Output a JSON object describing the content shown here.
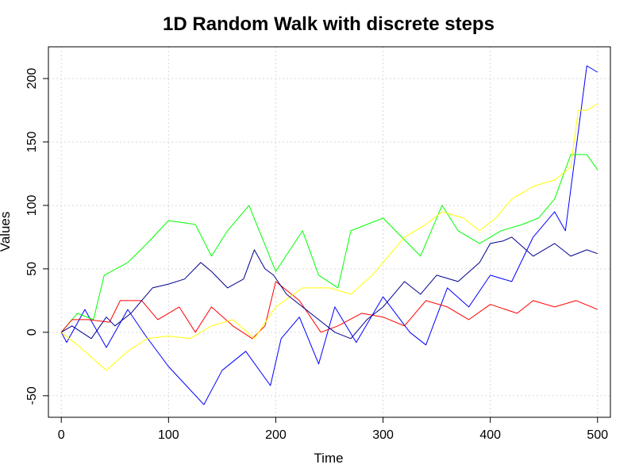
{
  "chart_data": {
    "type": "line",
    "title": "1D Random Walk with discrete steps",
    "xlabel": "Time",
    "ylabel": "Values",
    "xlim": [
      -12,
      512
    ],
    "ylim": [
      -67,
      225
    ],
    "xticks": [
      0,
      100,
      200,
      300,
      400,
      500
    ],
    "yticks": [
      -50,
      0,
      50,
      100,
      150,
      200
    ],
    "grid": true,
    "series": [
      {
        "color": "#0000ff",
        "points": [
          [
            0,
            0
          ],
          [
            5,
            -8
          ],
          [
            22,
            18
          ],
          [
            42,
            -12
          ],
          [
            62,
            18
          ],
          [
            78,
            -2
          ],
          [
            100,
            -27
          ],
          [
            133,
            -57
          ],
          [
            150,
            -30
          ],
          [
            172,
            -15
          ],
          [
            195,
            -42
          ],
          [
            205,
            -5
          ],
          [
            222,
            12
          ],
          [
            240,
            -25
          ],
          [
            255,
            20
          ],
          [
            275,
            -8
          ],
          [
            300,
            28
          ],
          [
            325,
            0
          ],
          [
            340,
            -10
          ],
          [
            360,
            35
          ],
          [
            380,
            20
          ],
          [
            400,
            45
          ],
          [
            420,
            40
          ],
          [
            440,
            75
          ],
          [
            460,
            95
          ],
          [
            470,
            80
          ],
          [
            490,
            210
          ],
          [
            500,
            205
          ]
        ]
      },
      {
        "color": "#00ff00",
        "points": [
          [
            0,
            0
          ],
          [
            15,
            15
          ],
          [
            30,
            10
          ],
          [
            40,
            45
          ],
          [
            62,
            55
          ],
          [
            80,
            70
          ],
          [
            100,
            88
          ],
          [
            125,
            85
          ],
          [
            140,
            60
          ],
          [
            155,
            80
          ],
          [
            175,
            100
          ],
          [
            200,
            48
          ],
          [
            225,
            80
          ],
          [
            240,
            45
          ],
          [
            258,
            35
          ],
          [
            270,
            80
          ],
          [
            300,
            90
          ],
          [
            335,
            60
          ],
          [
            355,
            100
          ],
          [
            370,
            80
          ],
          [
            390,
            70
          ],
          [
            410,
            80
          ],
          [
            430,
            85
          ],
          [
            445,
            90
          ],
          [
            460,
            105
          ],
          [
            475,
            140
          ],
          [
            490,
            140
          ],
          [
            500,
            128
          ]
        ]
      },
      {
        "color": "#ff0000",
        "points": [
          [
            0,
            0
          ],
          [
            10,
            10
          ],
          [
            25,
            10
          ],
          [
            45,
            8
          ],
          [
            55,
            25
          ],
          [
            75,
            25
          ],
          [
            90,
            10
          ],
          [
            110,
            20
          ],
          [
            125,
            0
          ],
          [
            140,
            20
          ],
          [
            160,
            5
          ],
          [
            178,
            -5
          ],
          [
            190,
            5
          ],
          [
            200,
            40
          ],
          [
            222,
            25
          ],
          [
            242,
            0
          ],
          [
            258,
            5
          ],
          [
            280,
            15
          ],
          [
            300,
            12
          ],
          [
            320,
            5
          ],
          [
            340,
            25
          ],
          [
            360,
            20
          ],
          [
            380,
            10
          ],
          [
            400,
            22
          ],
          [
            425,
            15
          ],
          [
            440,
            25
          ],
          [
            460,
            20
          ],
          [
            480,
            25
          ],
          [
            500,
            18
          ]
        ]
      },
      {
        "color": "#ffff00",
        "points": [
          [
            0,
            0
          ],
          [
            15,
            -10
          ],
          [
            42,
            -30
          ],
          [
            62,
            -15
          ],
          [
            80,
            -5
          ],
          [
            100,
            -3
          ],
          [
            120,
            -5
          ],
          [
            140,
            5
          ],
          [
            160,
            10
          ],
          [
            180,
            -5
          ],
          [
            200,
            20
          ],
          [
            225,
            35
          ],
          [
            250,
            35
          ],
          [
            270,
            30
          ],
          [
            290,
            45
          ],
          [
            305,
            60
          ],
          [
            320,
            75
          ],
          [
            340,
            85
          ],
          [
            355,
            95
          ],
          [
            375,
            90
          ],
          [
            390,
            80
          ],
          [
            405,
            90
          ],
          [
            420,
            105
          ],
          [
            440,
            115
          ],
          [
            460,
            120
          ],
          [
            475,
            130
          ],
          [
            482,
            175
          ],
          [
            490,
            175
          ],
          [
            500,
            180
          ]
        ]
      },
      {
        "color": "#00008b",
        "points": [
          [
            0,
            0
          ],
          [
            10,
            5
          ],
          [
            28,
            -5
          ],
          [
            42,
            12
          ],
          [
            50,
            5
          ],
          [
            65,
            15
          ],
          [
            75,
            25
          ],
          [
            85,
            35
          ],
          [
            100,
            38
          ],
          [
            115,
            42
          ],
          [
            130,
            55
          ],
          [
            140,
            48
          ],
          [
            155,
            35
          ],
          [
            170,
            42
          ],
          [
            180,
            65
          ],
          [
            190,
            50
          ],
          [
            198,
            45
          ],
          [
            210,
            30
          ],
          [
            225,
            20
          ],
          [
            240,
            10
          ],
          [
            255,
            0
          ],
          [
            270,
            -5
          ],
          [
            285,
            10
          ],
          [
            300,
            20
          ],
          [
            320,
            40
          ],
          [
            335,
            30
          ],
          [
            350,
            45
          ],
          [
            370,
            40
          ],
          [
            390,
            55
          ],
          [
            400,
            70
          ],
          [
            412,
            72
          ],
          [
            420,
            75
          ],
          [
            440,
            60
          ],
          [
            460,
            70
          ],
          [
            475,
            60
          ],
          [
            490,
            65
          ],
          [
            500,
            62
          ]
        ]
      }
    ]
  }
}
